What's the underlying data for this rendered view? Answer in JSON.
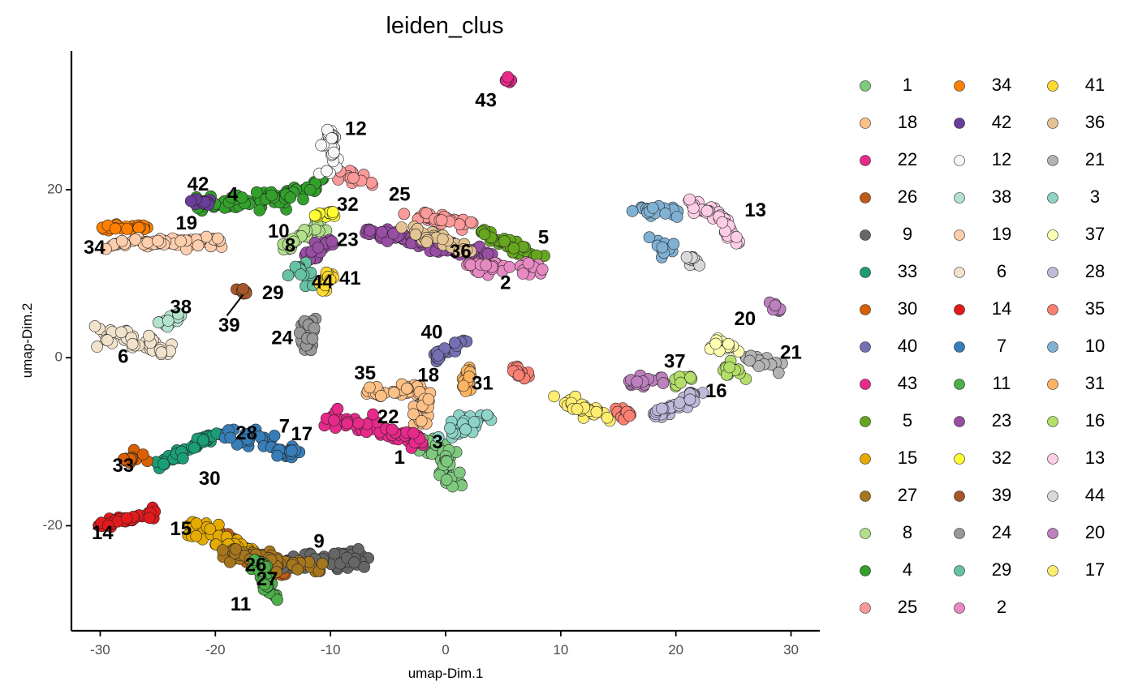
{
  "chart_data": {
    "type": "scatter",
    "title": "leiden_clus",
    "xlabel": "umap-Dim.1",
    "ylabel": "umap-Dim.2",
    "xlim": [
      -32.5,
      32.5
    ],
    "ylim": [
      -32.5,
      36.5
    ],
    "xticks": [
      -30,
      -20,
      -10,
      0,
      10,
      20,
      30
    ],
    "yticks": [
      -20,
      0,
      20
    ],
    "grid": false,
    "legend_position": "right",
    "legend_columns": [
      [
        "1",
        "18",
        "22",
        "26",
        "9",
        "33",
        "30",
        "40",
        "43",
        "5",
        "15",
        "27",
        "8",
        "4",
        "25"
      ],
      [
        "34",
        "42",
        "12",
        "38",
        "19",
        "6",
        "14",
        "7",
        "11",
        "23",
        "32",
        "39",
        "24",
        "29",
        "2"
      ],
      [
        "41",
        "36",
        "21",
        "3",
        "37",
        "28",
        "35",
        "10",
        "31",
        "16",
        "13",
        "44",
        "20",
        "17"
      ]
    ],
    "clusters": [
      {
        "name": "1",
        "color": "#7fc97f",
        "label": [
          -4,
          -12
        ],
        "segments": [
          [
            [
              -3,
              -10
            ],
            [
              0,
              -11
            ],
            [
              0.5,
              -15
            ]
          ]
        ],
        "spread": 1.1
      },
      {
        "name": "18",
        "color": "#fdc086",
        "label": [
          -1.5,
          -2.2
        ],
        "segments": [
          [
            [
              -7,
              -4
            ],
            [
              -2,
              -4
            ],
            [
              -2,
              -8
            ]
          ]
        ],
        "spread": 0.8
      },
      {
        "name": "22",
        "color": "#e7298a",
        "label": [
          -5,
          -7.2
        ],
        "segments": [
          [
            [
              -10,
              -7
            ],
            [
              -2,
              -10
            ]
          ]
        ],
        "spread": 0.8
      },
      {
        "name": "26",
        "color": "#bf5b17",
        "label": [
          -16.5,
          -24.8
        ],
        "segments": [
          [
            [
              -20,
              -21
            ],
            [
              -14,
              -26
            ]
          ]
        ],
        "spread": 0.6
      },
      {
        "name": "9",
        "color": "#666666",
        "label": [
          -11,
          -22
        ],
        "segments": [
          [
            [
              -15,
              -24
            ],
            [
              -7,
              -24
            ]
          ]
        ],
        "spread": 1.0
      },
      {
        "name": "33",
        "color": "#1b9e77",
        "label": [
          -28,
          -13
        ],
        "segments": [
          [
            [
              -20,
              -9
            ],
            [
              -25,
              -13
            ]
          ]
        ],
        "spread": 0.5
      },
      {
        "name": "30",
        "color": "#d95f02",
        "label": [
          -20.5,
          -14.5
        ],
        "segments": [
          [
            [
              -26,
              -12
            ],
            [
              -28,
              -12
            ]
          ]
        ],
        "spread": 0.6
      },
      {
        "name": "40",
        "color": "#7570b3",
        "label": [
          -1.2,
          2.9
        ],
        "segments": [
          [
            [
              -1,
              0
            ],
            [
              1.5,
              2
            ]
          ]
        ],
        "spread": 0.5
      },
      {
        "name": "43",
        "color": "#e7298a",
        "label": [
          3.5,
          30.5
        ],
        "segments": [
          [
            [
              5.5,
              33
            ],
            [
              5.5,
              33
            ]
          ]
        ],
        "spread": 0.3
      },
      {
        "name": "5",
        "color": "#66a61e",
        "label": [
          8.5,
          14.2
        ],
        "segments": [
          [
            [
              3,
              15
            ],
            [
              8,
              12
            ]
          ]
        ],
        "spread": 0.6
      },
      {
        "name": "15",
        "color": "#e6ab02",
        "label": [
          -23,
          -20.5
        ],
        "segments": [
          [
            [
              -15,
              -25
            ],
            [
              -22,
              -20
            ]
          ]
        ],
        "spread": 1.0
      },
      {
        "name": "27",
        "color": "#a6761d",
        "label": [
          -15.5,
          -26.5
        ],
        "segments": [
          [
            [
              -11,
              -25
            ],
            [
              -19,
              -23
            ]
          ]
        ],
        "spread": 0.9
      },
      {
        "name": "8",
        "color": "#b2df8a",
        "label": [
          -13.5,
          13.2
        ],
        "segments": [
          [
            [
              -14,
              13
            ],
            [
              -11,
              16
            ]
          ]
        ],
        "spread": 0.7
      },
      {
        "name": "4",
        "color": "#33a02c",
        "label": [
          -18.5,
          19.3
        ],
        "segments": [
          [
            [
              -22,
              18
            ],
            [
              -14,
              19
            ],
            [
              -11,
              21
            ]
          ]
        ],
        "spread": 0.8
      },
      {
        "name": "25",
        "color": "#fb9a99",
        "label": [
          -4,
          19.3
        ],
        "segments": [
          [
            [
              -9,
              22
            ],
            [
              -7,
              21
            ]
          ],
          [
            [
              -3,
              17
            ],
            [
              2,
              16
            ]
          ]
        ],
        "spread": 0.7
      },
      {
        "name": "34",
        "color": "#ff7f00",
        "label": [
          -30.5,
          13
        ],
        "segments": [
          [
            [
              -30,
              15.5
            ],
            [
              -26,
              15.5
            ]
          ]
        ],
        "spread": 0.3
      },
      {
        "name": "42",
        "color": "#6a3d9a",
        "label": [
          -21.5,
          20.5
        ],
        "segments": [
          [
            [
              -22,
              18.5
            ],
            [
              -20,
              18.5
            ]
          ]
        ],
        "spread": 0.4
      },
      {
        "name": "12",
        "color": "#f7f7f7",
        "label": [
          -7.8,
          27.1
        ],
        "segments": [
          [
            [
              -10,
              27
            ],
            [
              -10,
              22
            ]
          ]
        ],
        "spread": 0.7
      },
      {
        "name": "38",
        "color": "#b3e2cd",
        "label": [
          -23,
          5.9
        ],
        "segments": [
          [
            [
              -25,
              4
            ],
            [
              -23,
              5
            ]
          ]
        ],
        "spread": 0.5
      },
      {
        "name": "19",
        "color": "#fdcdac",
        "label": [
          -22.5,
          15.9
        ],
        "segments": [
          [
            [
              -29,
              13.5
            ],
            [
              -19,
              14
            ]
          ]
        ],
        "spread": 0.6
      },
      {
        "name": "6",
        "color": "#f1e2cc",
        "label": [
          -28,
          0
        ],
        "segments": [
          [
            [
              -30,
              3
            ],
            [
              -24,
              1
            ]
          ]
        ],
        "spread": 0.8
      },
      {
        "name": "14",
        "color": "#e31a1c",
        "label": [
          -29.8,
          -21
        ],
        "segments": [
          [
            [
              -30,
              -20
            ],
            [
              -25,
              -18.5
            ]
          ]
        ],
        "spread": 0.5
      },
      {
        "name": "7",
        "color": "#377eb8",
        "label": [
          -14,
          -8.3
        ],
        "segments": [
          [
            [
              -19,
              -8.5
            ],
            [
              -13,
              -11.5
            ]
          ]
        ],
        "spread": 0.8
      },
      {
        "name": "11",
        "color": "#4daf4a",
        "label": [
          -17.8,
          -29.5
        ],
        "segments": [
          [
            [
              -16.5,
              -24
            ],
            [
              -15,
              -28.5
            ]
          ]
        ],
        "spread": 0.5
      },
      {
        "name": "23",
        "color": "#984ea3",
        "label": [
          -8.5,
          13.9
        ],
        "segments": [
          [
            [
              -12,
              12
            ],
            [
              -10,
              14
            ]
          ],
          [
            [
              -7,
              15
            ],
            [
              4,
              12
            ]
          ]
        ],
        "spread": 0.6
      },
      {
        "name": "32",
        "color": "#ffff33",
        "label": [
          -8.5,
          18.1
        ],
        "segments": [
          [
            [
              -11,
              17
            ],
            [
              -9,
              17.5
            ]
          ]
        ],
        "spread": 0.6
      },
      {
        "name": "39",
        "color": "#a65628",
        "label": [
          -18.8,
          3.7
        ],
        "segments": [
          [
            [
              -17.5,
              7.5
            ],
            [
              -17.5,
              8.5
            ]
          ]
        ],
        "spread": 0.4
      },
      {
        "name": "24",
        "color": "#999999",
        "label": [
          -14.2,
          2.2
        ],
        "segments": [
          [
            [
              -12,
              5
            ],
            [
              -12,
              1
            ]
          ]
        ],
        "spread": 0.7
      },
      {
        "name": "29",
        "color": "#66c2a5",
        "label": [
          -15,
          7.6
        ],
        "segments": [
          [
            [
              -13,
              11
            ],
            [
              -12,
              9
            ]
          ]
        ],
        "spread": 0.7
      },
      {
        "name": "2",
        "color": "#e78ac3",
        "label": [
          5.2,
          8.8
        ],
        "segments": [
          [
            [
              2,
              11
            ],
            [
              8,
              10.5
            ]
          ]
        ],
        "spread": 0.8
      },
      {
        "name": "41",
        "color": "#ffd92f",
        "label": [
          -8.3,
          9.3
        ],
        "segments": [
          [
            [
              -10.5,
              8
            ],
            [
              -10,
              10
            ]
          ]
        ],
        "spread": 0.5
      },
      {
        "name": "36",
        "color": "#e5c494",
        "label": [
          1.3,
          12.5
        ],
        "segments": [
          [
            [
              -3,
              15
            ],
            [
              2,
              13
            ]
          ]
        ],
        "spread": 0.6
      },
      {
        "name": "21",
        "color": "#b3b3b3",
        "label": [
          30,
          0.5
        ],
        "segments": [
          [
            [
              26,
              0
            ],
            [
              29,
              -1
            ]
          ]
        ],
        "spread": 0.6
      },
      {
        "name": "3",
        "color": "#8dd3c7",
        "label": [
          -0.7,
          -10.2
        ],
        "segments": [
          [
            [
              0,
              -9
            ],
            [
              4,
              -7
            ]
          ]
        ],
        "spread": 0.9
      },
      {
        "name": "37",
        "color": "#ffffb3",
        "label": [
          19.9,
          -0.6
        ],
        "segments": [
          [
            [
              23,
              2
            ],
            [
              25,
              1
            ]
          ]
        ],
        "spread": 0.6
      },
      {
        "name": "28",
        "color": "#bebada",
        "label": [
          -17.3,
          -9.1
        ],
        "segments": [
          [
            [
              18,
              -7
            ],
            [
              22,
              -4
            ]
          ]
        ],
        "spread": 0.6
      },
      {
        "name": "35",
        "color": "#fb8072",
        "label": [
          -7,
          -2
        ],
        "segments": [
          [
            [
              6,
              -1
            ],
            [
              7,
              -2.5
            ]
          ],
          [
            [
              15,
              -6
            ],
            [
              16,
              -7
            ]
          ]
        ],
        "spread": 0.4
      },
      {
        "name": "10",
        "color": "#80b1d3",
        "label": [
          -14.5,
          14.9
        ],
        "segments": [
          [
            [
              17,
              17.5
            ],
            [
              20,
              17.5
            ]
          ],
          [
            [
              19,
              14
            ],
            [
              19,
              12
            ]
          ]
        ],
        "spread": 0.7
      },
      {
        "name": "31",
        "color": "#fdb462",
        "label": [
          3.2,
          -3.2
        ],
        "segments": [
          [
            [
              2,
              -1
            ],
            [
              2,
              -4
            ]
          ]
        ],
        "spread": 0.5
      },
      {
        "name": "16",
        "color": "#b3de69",
        "label": [
          23.5,
          -4.1
        ],
        "segments": [
          [
            [
              24,
              -1
            ],
            [
              26,
              -2
            ]
          ],
          [
            [
              20,
              -3
            ],
            [
              21,
              -2
            ]
          ]
        ],
        "spread": 0.7
      },
      {
        "name": "13",
        "color": "#fccde5",
        "label": [
          26.9,
          17.4
        ],
        "segments": [
          [
            [
              21,
              18.5
            ],
            [
              24,
              17
            ],
            [
              25,
              14
            ]
          ]
        ],
        "spread": 0.6
      },
      {
        "name": "44",
        "color": "#d9d9d9",
        "label": [
          -10.7,
          8.9
        ],
        "segments": [
          [
            [
              21,
              12
            ],
            [
              22,
              11
            ]
          ]
        ],
        "spread": 0.4
      },
      {
        "name": "20",
        "color": "#bc80bd",
        "label": [
          26,
          4.5
        ],
        "segments": [
          [
            [
              28,
              6
            ],
            [
              29,
              6
            ]
          ],
          [
            [
              16,
              -3
            ],
            [
              19,
              -2.5
            ]
          ]
        ],
        "spread": 0.5
      },
      {
        "name": "17",
        "color": "#ffed6f",
        "label": [
          -12.5,
          -9.2
        ],
        "segments": [
          [
            [
              10,
              -5
            ],
            [
              14,
              -7
            ]
          ]
        ],
        "spread": 0.6
      }
    ],
    "leader_lines": [
      [
        [
          -19,
          5
        ],
        [
          -17.6,
          7.5
        ]
      ]
    ]
  }
}
